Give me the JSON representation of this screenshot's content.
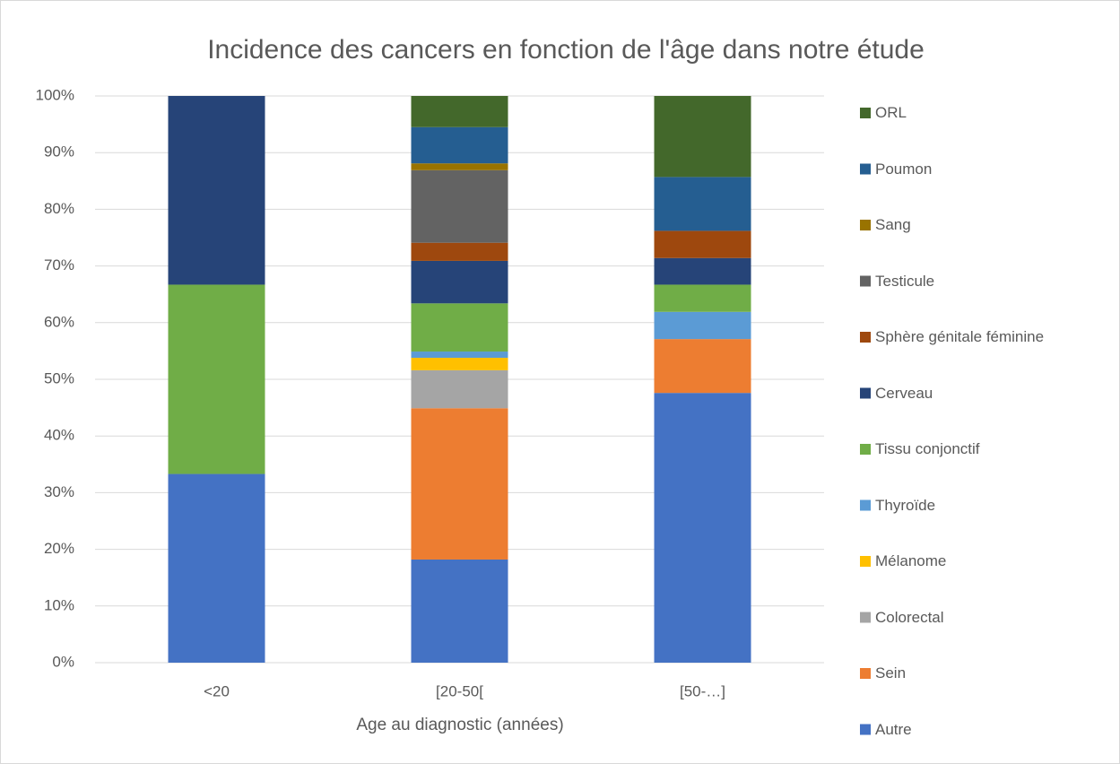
{
  "chart_data": {
    "type": "stacked_bar",
    "title": "Incidence des cancers en fonction de l'âge dans notre étude",
    "x_label": "Age au diagnostic (années)",
    "categories": [
      "<20",
      "[20-50[",
      "[50-…]"
    ],
    "ylim": [
      0,
      100
    ],
    "yticks": [
      {
        "value": 0,
        "label": "0%"
      },
      {
        "value": 10,
        "label": "10%"
      },
      {
        "value": 20,
        "label": "20%"
      },
      {
        "value": 30,
        "label": "30%"
      },
      {
        "value": 40,
        "label": "40%"
      },
      {
        "value": 50,
        "label": "50%"
      },
      {
        "value": 60,
        "label": "60%"
      },
      {
        "value": 70,
        "label": "70%"
      },
      {
        "value": 80,
        "label": "80%"
      },
      {
        "value": 90,
        "label": "90%"
      },
      {
        "value": 100,
        "label": "100%"
      }
    ],
    "grid": true,
    "legend": "right",
    "series": [
      {
        "name": "Autre",
        "color": "#4472c4",
        "values": [
          33.3,
          18.2,
          47.6
        ]
      },
      {
        "name": "Sein",
        "color": "#ed7d31",
        "values": [
          0,
          26.7,
          9.5
        ]
      },
      {
        "name": "Colorectal",
        "color": "#a5a5a5",
        "values": [
          0,
          6.7,
          0
        ]
      },
      {
        "name": "Mélanome",
        "color": "#ffc000",
        "values": [
          0,
          2.2,
          0
        ]
      },
      {
        "name": "Thyroïde",
        "color": "#5b9bd5",
        "values": [
          0,
          1.1,
          4.8
        ]
      },
      {
        "name": "Tissu conjonctif",
        "color": "#70ad47",
        "values": [
          33.4,
          8.5,
          4.8
        ]
      },
      {
        "name": "Cerveau",
        "color": "#264478",
        "values": [
          33.3,
          7.5,
          4.7
        ]
      },
      {
        "name": "Sphère génitale féminine",
        "color": "#9e480e",
        "values": [
          0,
          3.2,
          4.8
        ]
      },
      {
        "name": "Testicule",
        "color": "#636363",
        "values": [
          0,
          12.8,
          0
        ]
      },
      {
        "name": "Sang",
        "color": "#997300",
        "values": [
          0,
          1.2,
          0
        ]
      },
      {
        "name": "Poumon",
        "color": "#255e91",
        "values": [
          0,
          6.4,
          9.5
        ]
      },
      {
        "name": "ORL",
        "color": "#43682b",
        "values": [
          0,
          5.5,
          14.3
        ]
      }
    ]
  }
}
